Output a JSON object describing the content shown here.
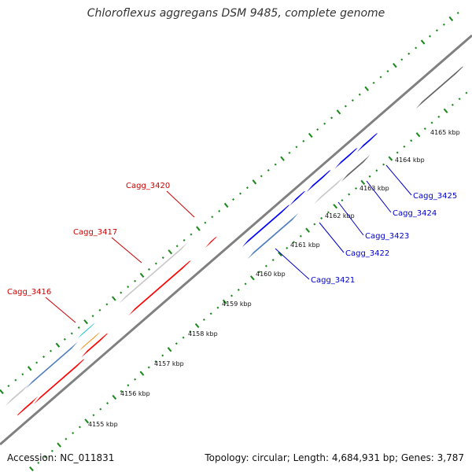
{
  "title": "Chloroflexus aggregans DSM 9485, complete genome",
  "accession_text": "Accession: NC_011831",
  "summary_text": "Topology: circular; Length: 4,684,931 bp; Genes: 3,787",
  "colors": {
    "backbone": "#808080",
    "ruler": "#1f8a1f",
    "label_forward": "#0000cc",
    "label_reverse": "#cc0000",
    "red": "#ff0000",
    "blue": "#0000ff",
    "steelblue": "#4f7fbf",
    "lightgray": "#c8c8c8",
    "darkgray": "#646464",
    "cyan": "#22c4d4",
    "orange": "#f7941d"
  },
  "scale_ticks": [
    "4155 kbp",
    "4156 kbp",
    "4157 kbp",
    "4158 kbp",
    "4159 kbp",
    "4160 kbp",
    "4161 kbp",
    "4162 kbp",
    "4163 kbp",
    "4164 kbp",
    "4165 kbp"
  ],
  "features": [
    {
      "color": "lightgray"
    },
    {
      "color": "steelblue"
    },
    {
      "color": "cyan"
    },
    {
      "color": "orange"
    },
    {
      "color": "red"
    },
    {
      "color": "red"
    },
    {
      "color": "red"
    },
    {
      "color": "lightgray"
    },
    {
      "color": "red"
    },
    {
      "color": "red"
    },
    {
      "color": "blue"
    },
    {
      "color": "steelblue"
    },
    {
      "color": "blue"
    },
    {
      "color": "lightgray"
    },
    {
      "color": "blue"
    },
    {
      "color": "darkgray"
    },
    {
      "color": "blue"
    },
    {
      "color": "blue"
    },
    {
      "color": "darkgray"
    }
  ],
  "gene_labels": [
    {
      "text": "Cagg_3416",
      "strand": "reverse"
    },
    {
      "text": "Cagg_3417",
      "strand": "reverse"
    },
    {
      "text": "Cagg_3420",
      "strand": "reverse"
    },
    {
      "text": "Cagg_3421",
      "strand": "forward"
    },
    {
      "text": "Cagg_3422",
      "strand": "forward"
    },
    {
      "text": "Cagg_3423",
      "strand": "forward"
    },
    {
      "text": "Cagg_3424",
      "strand": "forward"
    },
    {
      "text": "Cagg_3425",
      "strand": "forward"
    }
  ]
}
